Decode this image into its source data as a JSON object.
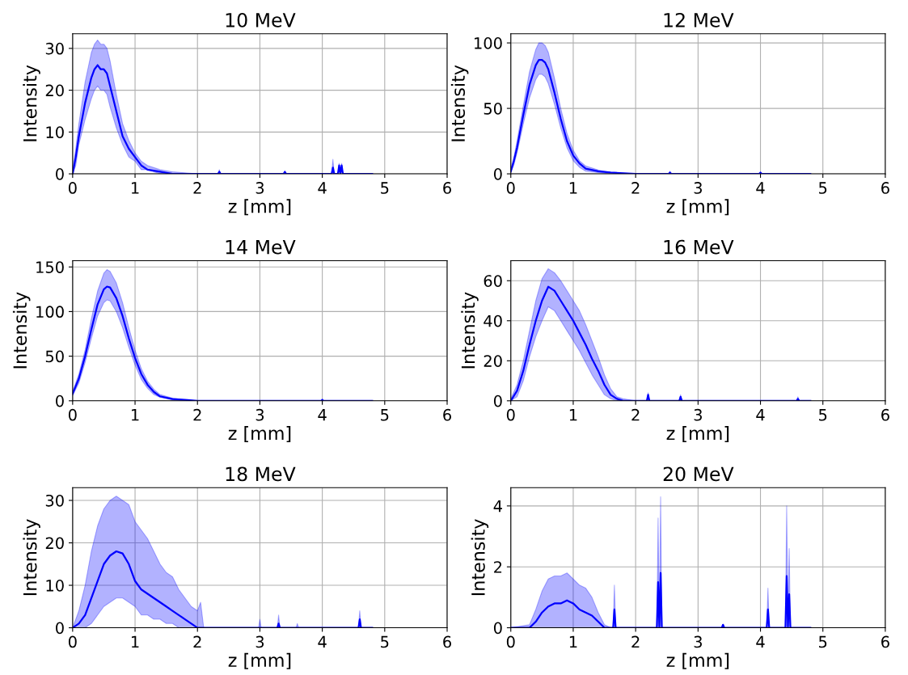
{
  "chart_data": [
    {
      "type": "line",
      "title": "10 MeV",
      "xlabel": "z [mm]",
      "ylabel": "Intensity",
      "xlim": [
        0,
        6
      ],
      "xticks": [
        0,
        1,
        2,
        3,
        4,
        5,
        6
      ],
      "ylim": [
        0,
        33.5
      ],
      "yticks": [
        0,
        10,
        20,
        30
      ],
      "grid": true,
      "x": [
        0,
        0.05,
        0.1,
        0.2,
        0.3,
        0.35,
        0.4,
        0.45,
        0.5,
        0.55,
        0.6,
        0.7,
        0.8,
        0.9,
        1.0,
        1.1,
        1.2,
        1.4,
        1.6,
        2.0,
        2.33,
        2.35,
        2.37,
        3.38,
        3.4,
        3.42,
        4.15,
        4.17,
        4.19,
        4.25,
        4.27,
        4.29,
        4.31,
        4.33,
        4.8
      ],
      "series": [
        {
          "color": "#0000ff",
          "values": [
            0,
            4,
            9,
            17,
            23,
            25,
            26,
            25,
            25,
            24,
            21,
            15,
            9,
            6,
            4,
            2,
            1,
            0.5,
            0,
            0,
            0,
            0.5,
            0,
            0,
            0.5,
            0,
            0,
            1.5,
            0,
            0,
            2,
            0,
            2,
            0,
            0
          ],
          "upper": [
            1,
            6,
            12,
            22,
            29,
            31,
            32,
            31,
            31,
            30,
            27,
            19,
            12,
            8,
            5,
            3,
            2,
            1,
            0.5,
            0,
            0,
            1,
            0,
            0,
            0.5,
            0,
            0,
            3.5,
            0,
            0,
            2.5,
            0,
            2.5,
            0,
            0
          ],
          "lower": [
            0,
            2,
            7,
            13,
            18,
            20,
            21,
            20,
            20,
            19,
            16,
            11,
            7,
            4,
            3,
            1,
            1,
            0,
            0,
            0,
            0,
            0,
            0,
            0,
            0,
            0,
            0,
            0,
            0,
            0,
            1,
            0,
            1,
            0,
            0
          ]
        }
      ]
    },
    {
      "type": "line",
      "title": "12 MeV",
      "xlabel": "z [mm]",
      "ylabel": "Intensity",
      "xlim": [
        0,
        6
      ],
      "xticks": [
        0,
        1,
        2,
        3,
        4,
        5,
        6
      ],
      "ylim": [
        0,
        107
      ],
      "yticks": [
        0,
        50,
        100
      ],
      "grid": true,
      "x": [
        0,
        0.05,
        0.1,
        0.2,
        0.3,
        0.4,
        0.45,
        0.5,
        0.55,
        0.6,
        0.7,
        0.8,
        0.9,
        1.0,
        1.1,
        1.2,
        1.4,
        1.6,
        2.0,
        2.53,
        2.55,
        2.57,
        3.98,
        4.0,
        4.02,
        4.8
      ],
      "series": [
        {
          "color": "#0000ff",
          "values": [
            2,
            10,
            20,
            45,
            68,
            83,
            87,
            87,
            85,
            80,
            62,
            42,
            25,
            14,
            8,
            4,
            2,
            1,
            0,
            0,
            1,
            0,
            0,
            1,
            0,
            0
          ],
          "upper": [
            3,
            13,
            25,
            52,
            78,
            95,
            100,
            100,
            98,
            93,
            73,
            50,
            31,
            18,
            10,
            6,
            3,
            1,
            0,
            0,
            2,
            0,
            0,
            1,
            0,
            0
          ],
          "lower": [
            1,
            7,
            16,
            38,
            58,
            72,
            76,
            76,
            74,
            69,
            53,
            35,
            20,
            10,
            5,
            2,
            1,
            0,
            0,
            0,
            0,
            0,
            0,
            0,
            0,
            0
          ]
        }
      ]
    },
    {
      "type": "line",
      "title": "14 MeV",
      "xlabel": "z [mm]",
      "ylabel": "Intensity",
      "xlim": [
        0,
        6
      ],
      "xticks": [
        0,
        1,
        2,
        3,
        4,
        5,
        6
      ],
      "ylim": [
        0,
        157
      ],
      "yticks": [
        0,
        50,
        100,
        150
      ],
      "grid": true,
      "x": [
        0,
        0.1,
        0.2,
        0.3,
        0.4,
        0.5,
        0.55,
        0.6,
        0.7,
        0.8,
        0.9,
        1.0,
        1.1,
        1.2,
        1.3,
        1.4,
        1.6,
        1.8,
        2.0,
        3.98,
        4.0,
        4.02,
        4.8
      ],
      "series": [
        {
          "color": "#0000ff",
          "values": [
            8,
            25,
            50,
            80,
            108,
            125,
            128,
            127,
            115,
            95,
            70,
            48,
            30,
            18,
            10,
            5,
            2,
            1,
            0,
            0,
            1,
            0,
            0
          ],
          "upper": [
            10,
            30,
            57,
            92,
            123,
            143,
            147,
            145,
            132,
            110,
            82,
            57,
            36,
            22,
            13,
            7,
            3,
            1,
            0,
            0,
            2,
            0,
            0
          ],
          "lower": [
            6,
            20,
            43,
            70,
            95,
            110,
            113,
            112,
            100,
            82,
            60,
            40,
            24,
            14,
            7,
            4,
            1,
            0,
            0,
            0,
            0,
            0,
            0
          ]
        }
      ]
    },
    {
      "type": "line",
      "title": "16 MeV",
      "xlabel": "z [mm]",
      "ylabel": "Intensity",
      "xlim": [
        0,
        6
      ],
      "xticks": [
        0,
        1,
        2,
        3,
        4,
        5,
        6
      ],
      "ylim": [
        0,
        70
      ],
      "yticks": [
        0,
        20,
        40,
        60
      ],
      "grid": true,
      "x": [
        0,
        0.1,
        0.2,
        0.3,
        0.4,
        0.5,
        0.6,
        0.7,
        0.8,
        0.9,
        1.0,
        1.1,
        1.2,
        1.3,
        1.4,
        1.5,
        1.6,
        1.7,
        1.8,
        2.0,
        2.18,
        2.2,
        2.22,
        2.7,
        2.72,
        2.74,
        4.58,
        4.6,
        4.62,
        4.8
      ],
      "series": [
        {
          "color": "#0000ff",
          "values": [
            0,
            5,
            15,
            28,
            40,
            50,
            57,
            55,
            50,
            45,
            40,
            34,
            28,
            21,
            15,
            8,
            3,
            1,
            0,
            0,
            0,
            3,
            0,
            0,
            2,
            0,
            0,
            1,
            0,
            0
          ],
          "upper": [
            1,
            8,
            20,
            35,
            50,
            61,
            66,
            64,
            60,
            55,
            50,
            45,
            38,
            30,
            22,
            13,
            6,
            2,
            1,
            0,
            0,
            4,
            0,
            0,
            3,
            0,
            0,
            2,
            0,
            0
          ],
          "lower": [
            0,
            2,
            10,
            22,
            32,
            40,
            47,
            45,
            40,
            35,
            30,
            25,
            19,
            13,
            8,
            3,
            1,
            0,
            0,
            0,
            0,
            0,
            0,
            0,
            0,
            0,
            0,
            0,
            0,
            0
          ]
        }
      ]
    },
    {
      "type": "line",
      "title": "18 MeV",
      "xlabel": "z [mm]",
      "ylabel": "Intensity",
      "xlim": [
        0,
        6
      ],
      "xticks": [
        0,
        1,
        2,
        3,
        4,
        5,
        6
      ],
      "ylim": [
        0,
        33
      ],
      "yticks": [
        0,
        10,
        20,
        30
      ],
      "grid": true,
      "x": [
        0,
        0.1,
        0.2,
        0.3,
        0.4,
        0.5,
        0.6,
        0.7,
        0.8,
        0.9,
        1.0,
        1.1,
        1.2,
        1.3,
        1.4,
        1.5,
        1.6,
        1.7,
        1.8,
        1.9,
        2.0,
        2.05,
        2.1,
        2.98,
        3.0,
        3.02,
        3.28,
        3.3,
        3.32,
        3.34,
        3.58,
        3.6,
        3.62,
        4.58,
        4.6,
        4.62,
        4.8
      ],
      "series": [
        {
          "color": "#0000ff",
          "values": [
            0,
            1,
            3,
            7,
            11,
            15,
            17,
            18,
            17.5,
            15,
            11,
            9,
            8,
            7,
            6,
            5,
            4,
            3,
            2,
            1,
            0,
            0,
            0,
            0,
            0,
            0,
            0,
            1,
            0,
            0,
            0,
            0,
            0,
            0,
            2,
            0,
            0
          ],
          "upper": [
            0,
            4,
            10,
            18,
            24,
            28,
            30,
            31,
            30,
            29,
            25,
            23,
            21,
            18,
            15,
            13,
            12,
            9,
            7,
            5,
            4,
            6,
            0,
            0,
            2,
            0,
            0,
            3,
            0,
            0,
            0,
            1,
            0,
            0,
            4,
            0,
            0
          ],
          "lower": [
            0,
            0,
            0,
            1,
            3,
            5,
            6,
            7,
            7,
            6,
            5,
            3,
            3,
            2,
            2,
            1,
            1,
            0,
            0,
            0,
            0,
            0,
            0,
            0,
            0,
            0,
            0,
            0,
            0,
            0,
            0,
            0,
            0,
            0,
            0,
            0,
            0
          ]
        }
      ]
    },
    {
      "type": "line",
      "title": "20 MeV",
      "xlabel": "z [mm]",
      "ylabel": "Intensity",
      "xlim": [
        0,
        6
      ],
      "xticks": [
        0,
        1,
        2,
        3,
        4,
        5,
        6
      ],
      "ylim": [
        0,
        4.6
      ],
      "yticks": [
        0,
        2,
        4
      ],
      "grid": true,
      "x": [
        0,
        0.3,
        0.4,
        0.5,
        0.6,
        0.7,
        0.8,
        0.9,
        1.0,
        1.1,
        1.2,
        1.3,
        1.4,
        1.5,
        1.6,
        1.64,
        1.66,
        1.68,
        2.34,
        2.36,
        2.38,
        2.4,
        2.42,
        3.38,
        3.4,
        3.42,
        4.1,
        4.12,
        4.14,
        4.4,
        4.42,
        4.44,
        4.46,
        4.48,
        4.8
      ],
      "series": [
        {
          "color": "#0000ff",
          "values": [
            0,
            0,
            0.2,
            0.5,
            0.7,
            0.8,
            0.8,
            0.9,
            0.8,
            0.6,
            0.5,
            0.4,
            0.2,
            0,
            0,
            0,
            0.6,
            0,
            0,
            1.5,
            0,
            1.8,
            0,
            0,
            0.1,
            0,
            0,
            0.6,
            0,
            0,
            1.7,
            0,
            1.1,
            0,
            0
          ],
          "upper": [
            0,
            0.1,
            0.6,
            1.2,
            1.6,
            1.7,
            1.7,
            1.8,
            1.6,
            1.4,
            1.3,
            1.0,
            0.5,
            0.1,
            0,
            0,
            1.4,
            0,
            0,
            3.6,
            0,
            4.3,
            0,
            0,
            0.1,
            0,
            0,
            1.3,
            0,
            0,
            4.0,
            0,
            2.6,
            0,
            0
          ],
          "lower": [
            0,
            0,
            0,
            0,
            0,
            0,
            0,
            0,
            0,
            0,
            0,
            0,
            0,
            0,
            0,
            0,
            0,
            0,
            0,
            0,
            0,
            0,
            0,
            0,
            0,
            0,
            0,
            0,
            0,
            0,
            0,
            0,
            0,
            0,
            0
          ]
        }
      ]
    }
  ]
}
